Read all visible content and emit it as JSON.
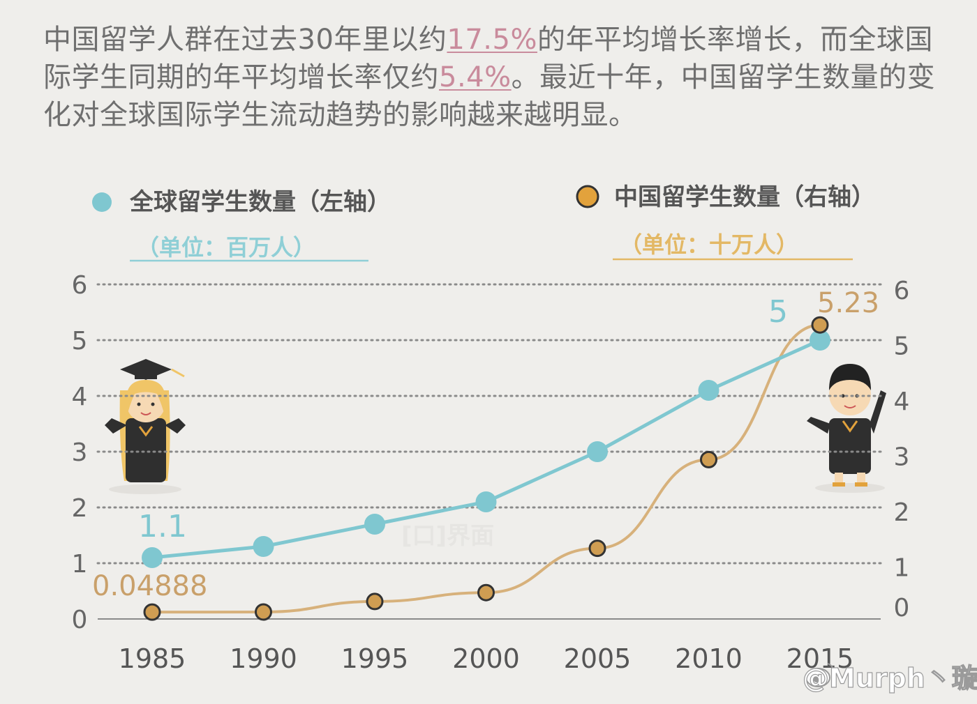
{
  "intro": {
    "part1": "中国留学人群在过去30年里以约",
    "hl1": "17.5%",
    "part2": "的年平均增长率增长，而全球国际学生同期的年平均增长率仅约",
    "hl2": "5.4%",
    "part3": "。最近十年，中国留学生数量的变化对全球国际学生流动趋势的影响越来越明显。"
  },
  "legend": {
    "global_label": "全球留学生数量（左轴）",
    "global_unit": "（单位：百万人）",
    "china_label": "中国留学生数量（右轴）",
    "china_unit": "（单位：十万人）"
  },
  "colors": {
    "global": "#7fc7d0",
    "china": "#cf9d52",
    "china_line": "#d7b17b",
    "grid": "#8a8a8a"
  },
  "watermark": "[口]界面",
  "weibo_mark": "@Murph丶璇",
  "chart_data": {
    "type": "line",
    "x": [
      "1985",
      "1990",
      "1995",
      "2000",
      "2005",
      "2010",
      "2015"
    ],
    "left_axis": {
      "ylim": [
        0,
        6
      ],
      "ticks": [
        "0",
        "1",
        "2",
        "3",
        "4",
        "5",
        "6"
      ]
    },
    "right_axis": {
      "ylim": [
        0,
        6
      ],
      "ticks": [
        "0",
        "1",
        "2",
        "3",
        "4",
        "5",
        "6"
      ]
    },
    "grid": true,
    "series": [
      {
        "name": "全球留学生数量",
        "axis": "left",
        "values": [
          1.1,
          1.3,
          1.7,
          2.1,
          3.0,
          4.1,
          5.0
        ]
      },
      {
        "name": "中国留学生数量",
        "axis": "right",
        "values": [
          0.04888,
          0.05,
          0.24,
          0.4,
          1.2,
          2.8,
          5.23
        ]
      }
    ],
    "annotations": [
      {
        "series": "全球留学生数量",
        "x": "1985",
        "text": "1.1"
      },
      {
        "series": "全球留学生数量",
        "x": "2015",
        "text": "5"
      },
      {
        "series": "中国留学生数量",
        "x": "1985",
        "text": "0.04888"
      },
      {
        "series": "中国留学生数量",
        "x": "2015",
        "text": "5.23"
      }
    ]
  }
}
